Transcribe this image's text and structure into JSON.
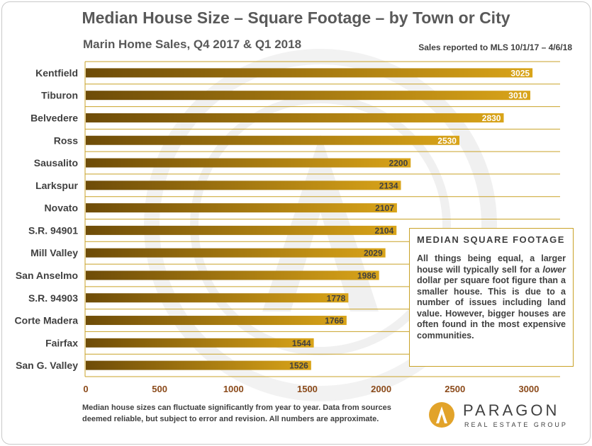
{
  "header": {
    "title": "Median House Size – Square Footage – by Town or City",
    "subtitle": "Marin Home Sales, Q4 2017 & Q1 2018",
    "note": "Sales reported to MLS 10/1/17 – 4/6/18"
  },
  "callout": {
    "heading": "MEDIAN SQUARE FOOTAGE",
    "text_before": "All things being equal, a larger house will typically sell for a ",
    "text_italic": "lower",
    "text_after": " dollar per square foot figure than a smaller house. This is due to a number of issues including land value. However, bigger houses are often found in the most expensive communities."
  },
  "footer": {
    "text": "Median house sizes can fluctuate significantly from year to year.  Data from sources deemed reliable, but subject to error and revision. All numbers are approximate."
  },
  "logo": {
    "name": "PARAGON",
    "tagline": "REAL ESTATE GROUP"
  },
  "colors": {
    "bar_dark": "#6e4c08",
    "bar_light": "#d9a419",
    "axis_tick_label": "#8b4a1a",
    "grid": "#c9a227",
    "category_label": "#404040"
  },
  "chart_data": {
    "type": "bar",
    "orientation": "horizontal",
    "categories": [
      "Kentfield",
      "Tiburon",
      "Belvedere",
      "Ross",
      "Sausalito",
      "Larkspur",
      "Novato",
      "S.R. 94901",
      "Mill Valley",
      "San Anselmo",
      "S.R. 94903",
      "Corte Madera",
      "Fairfax",
      "San G. Valley"
    ],
    "values": [
      3025,
      3010,
      2830,
      2530,
      2200,
      2134,
      2107,
      2104,
      2029,
      1986,
      1778,
      1766,
      1544,
      1526
    ],
    "xlim": [
      0,
      3200
    ],
    "xticks": [
      0,
      500,
      1000,
      1500,
      2000,
      2500,
      3000
    ],
    "grid": "horizontal lines between categories",
    "data_labels": true
  }
}
